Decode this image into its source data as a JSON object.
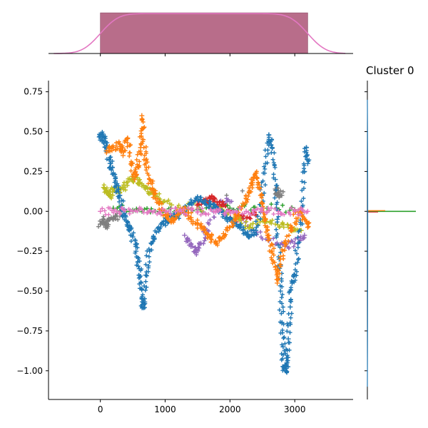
{
  "chart_data": [
    {
      "type": "scatter",
      "panel": "main",
      "title": "",
      "xlabel": "",
      "ylabel": "",
      "xlim": [
        -800,
        3900
      ],
      "ylim": [
        -1.18,
        0.82
      ],
      "x_ticks": [
        0,
        1000,
        2000,
        3000
      ],
      "y_ticks": [
        0.75,
        0.5,
        0.25,
        0.0,
        -0.25,
        -0.5,
        -0.75,
        -1.0
      ],
      "y_tick_labels": [
        "0.75",
        "0.50",
        "0.25",
        "0.00",
        "−0.25",
        "−0.50",
        "−0.75",
        "−1.00"
      ],
      "marker": "+",
      "grid": false,
      "series": [
        {
          "color": "#7f7f7f",
          "points": [
            [
              0,
              -0.08
            ],
            [
              40,
              -0.05
            ],
            [
              80,
              -0.1
            ],
            [
              120,
              -0.06
            ],
            [
              200,
              -0.04
            ],
            [
              300,
              -0.03
            ],
            [
              2700,
              0.14
            ],
            [
              2750,
              0.12
            ],
            [
              2800,
              0.1
            ]
          ]
        },
        {
          "color": "#9467bd",
          "points": [
            [
              1300,
              -0.15
            ],
            [
              1400,
              -0.22
            ],
            [
              1480,
              -0.26
            ],
            [
              1550,
              -0.2
            ],
            [
              1650,
              -0.12
            ],
            [
              1800,
              0.04
            ],
            [
              2000,
              0.06
            ],
            [
              2300,
              -0.1
            ],
            [
              2600,
              -0.18
            ],
            [
              2850,
              -0.22
            ],
            [
              3000,
              -0.2
            ],
            [
              3150,
              -0.15
            ]
          ]
        },
        {
          "color": "#d62728",
          "points": [
            [
              1500,
              0.04
            ],
            [
              1600,
              0.06
            ],
            [
              1700,
              0.08
            ],
            [
              1800,
              0.06
            ],
            [
              1900,
              0.04
            ],
            [
              2100,
              -0.05
            ],
            [
              2200,
              -0.03
            ],
            [
              2400,
              -0.02
            ]
          ]
        },
        {
          "color": "#2ca02c",
          "points": [
            [
              200,
              0.02
            ],
            [
              600,
              0.01
            ],
            [
              1000,
              0.0
            ],
            [
              1500,
              0.01
            ],
            [
              2000,
              0.02
            ],
            [
              2500,
              0.03
            ],
            [
              3000,
              0.01
            ]
          ]
        },
        {
          "color": "#bcbd22",
          "points": [
            [
              50,
              0.15
            ],
            [
              100,
              0.12
            ],
            [
              150,
              0.1
            ],
            [
              200,
              0.14
            ],
            [
              300,
              0.12
            ],
            [
              400,
              0.18
            ],
            [
              500,
              0.2
            ],
            [
              600,
              0.18
            ],
            [
              700,
              0.15
            ],
            [
              800,
              0.12
            ],
            [
              900,
              0.08
            ],
            [
              1100,
              0.04
            ],
            [
              1800,
              0.02
            ],
            [
              2100,
              -0.05
            ],
            [
              2300,
              -0.1
            ],
            [
              2500,
              -0.05
            ],
            [
              2700,
              -0.08
            ],
            [
              2900,
              -0.1
            ],
            [
              3100,
              -0.12
            ]
          ]
        },
        {
          "color": "#1f77b4",
          "points": [
            [
              0,
              0.48
            ],
            [
              30,
              0.46
            ],
            [
              60,
              0.44
            ],
            [
              100,
              0.38
            ],
            [
              150,
              0.3
            ],
            [
              200,
              0.24
            ],
            [
              250,
              0.16
            ],
            [
              300,
              0.1
            ],
            [
              350,
              0.0
            ],
            [
              400,
              -0.06
            ],
            [
              450,
              -0.1
            ],
            [
              500,
              -0.16
            ],
            [
              550,
              -0.25
            ],
            [
              600,
              -0.36
            ],
            [
              630,
              -0.45
            ],
            [
              650,
              -0.6
            ],
            [
              670,
              -0.58
            ],
            [
              700,
              -0.4
            ],
            [
              760,
              -0.25
            ],
            [
              820,
              -0.16
            ],
            [
              900,
              -0.1
            ],
            [
              1000,
              -0.06
            ],
            [
              1100,
              -0.03
            ],
            [
              1200,
              -0.02
            ],
            [
              1300,
              0.0
            ],
            [
              1400,
              0.05
            ],
            [
              1500,
              0.09
            ],
            [
              1600,
              0.06
            ],
            [
              1700,
              0.04
            ],
            [
              1800,
              0.02
            ],
            [
              1900,
              -0.02
            ],
            [
              2000,
              -0.05
            ],
            [
              2100,
              -0.08
            ],
            [
              2200,
              -0.12
            ],
            [
              2300,
              -0.16
            ],
            [
              2400,
              -0.12
            ],
            [
              2500,
              0.1
            ],
            [
              2550,
              0.3
            ],
            [
              2600,
              0.48
            ],
            [
              2650,
              0.4
            ],
            [
              2700,
              0.2
            ],
            [
              2730,
              -0.05
            ],
            [
              2760,
              -0.3
            ],
            [
              2780,
              -0.5
            ],
            [
              2800,
              -0.7
            ],
            [
              2820,
              -0.85
            ],
            [
              2840,
              -0.98
            ],
            [
              2860,
              -1.0
            ],
            [
              2880,
              -0.95
            ],
            [
              2900,
              -0.8
            ],
            [
              2930,
              -0.6
            ],
            [
              2960,
              -0.45
            ],
            [
              3000,
              -0.4
            ],
            [
              3050,
              -0.2
            ],
            [
              3100,
              0.0
            ],
            [
              3150,
              0.25
            ],
            [
              3180,
              0.4
            ],
            [
              3200,
              0.3
            ]
          ]
        },
        {
          "color": "#ff7f0e",
          "points": [
            [
              100,
              0.38
            ],
            [
              200,
              0.4
            ],
            [
              300,
              0.42
            ],
            [
              350,
              0.35
            ],
            [
              420,
              0.46
            ],
            [
              480,
              0.3
            ],
            [
              530,
              0.2
            ],
            [
              580,
              0.28
            ],
            [
              620,
              0.4
            ],
            [
              640,
              0.6
            ],
            [
              660,
              0.45
            ],
            [
              700,
              0.32
            ],
            [
              760,
              0.2
            ],
            [
              820,
              0.12
            ],
            [
              900,
              0.05
            ],
            [
              1000,
              -0.02
            ],
            [
              1100,
              -0.06
            ],
            [
              1200,
              -0.02
            ],
            [
              1300,
              0.02
            ],
            [
              1400,
              -0.04
            ],
            [
              1500,
              -0.08
            ],
            [
              1600,
              -0.12
            ],
            [
              1700,
              -0.16
            ],
            [
              1800,
              -0.2
            ],
            [
              1900,
              -0.14
            ],
            [
              2000,
              -0.1
            ],
            [
              2100,
              -0.02
            ],
            [
              2200,
              0.05
            ],
            [
              2300,
              0.12
            ],
            [
              2350,
              0.18
            ],
            [
              2400,
              0.24
            ],
            [
              2450,
              0.15
            ],
            [
              2500,
              0.05
            ],
            [
              2550,
              -0.05
            ],
            [
              2600,
              -0.15
            ],
            [
              2650,
              -0.25
            ],
            [
              2700,
              -0.35
            ],
            [
              2730,
              -0.45
            ],
            [
              2780,
              -0.3
            ],
            [
              2850,
              -0.2
            ],
            [
              2950,
              -0.1
            ],
            [
              3050,
              0.0
            ],
            [
              3150,
              -0.05
            ],
            [
              3200,
              -0.1
            ]
          ]
        },
        {
          "color": "#e377c2",
          "points": [
            [
              0,
              0.0
            ],
            [
              250,
              0.0
            ],
            [
              500,
              0.0
            ],
            [
              750,
              0.0
            ],
            [
              1000,
              0.0
            ],
            [
              1250,
              0.0
            ],
            [
              1500,
              0.0
            ],
            [
              1750,
              0.0
            ],
            [
              2000,
              0.0
            ],
            [
              2250,
              0.0
            ],
            [
              2500,
              0.0
            ],
            [
              2750,
              0.0
            ],
            [
              3000,
              0.0
            ],
            [
              3200,
              0.0
            ]
          ]
        }
      ]
    },
    {
      "type": "bar",
      "panel": "top-marginal",
      "title": "",
      "xlim": [
        -800,
        3900
      ],
      "bins": [
        [
          0,
          3200
        ]
      ],
      "bar_color": "#b05d7d",
      "kde_color": "#e377c2"
    },
    {
      "type": "line",
      "panel": "right-marginal",
      "title": "Cluster 0",
      "xlim": [
        0,
        1
      ],
      "line_colors": [
        "#1f77b4",
        "#ff7f0e",
        "#2ca02c",
        "#d62728"
      ]
    }
  ]
}
